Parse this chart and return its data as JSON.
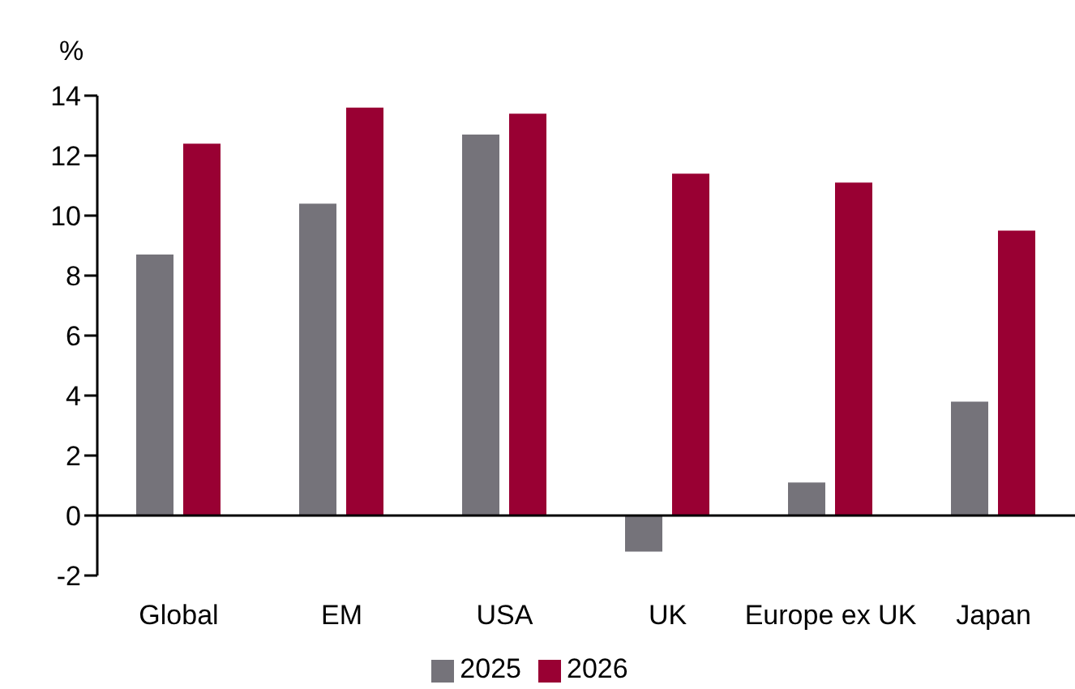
{
  "chart_data": {
    "type": "bar",
    "ylabel": "%",
    "categories": [
      "Global",
      "EM",
      "USA",
      "UK",
      "Europe ex UK",
      "Japan"
    ],
    "series": [
      {
        "name": "2025",
        "color": "#75737a",
        "values": [
          8.7,
          10.4,
          12.7,
          -1.2,
          1.1,
          3.8
        ]
      },
      {
        "name": "2026",
        "color": "#990033",
        "values": [
          12.4,
          13.6,
          13.4,
          11.4,
          11.1,
          9.5
        ]
      }
    ],
    "ylim": [
      -2,
      14
    ],
    "yticks": [
      -2,
      0,
      2,
      4,
      6,
      8,
      10,
      12,
      14
    ],
    "legend": "bottom"
  }
}
